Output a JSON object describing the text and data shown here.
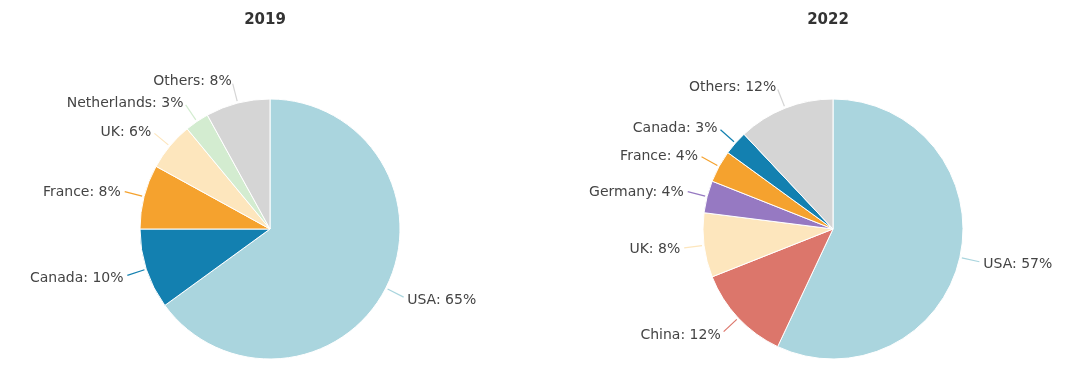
{
  "chart_data": [
    {
      "type": "pie",
      "title": "2019",
      "categories": [
        "USA",
        "Canada",
        "France",
        "UK",
        "Netherlands",
        "Others"
      ],
      "values": [
        65,
        10,
        8,
        6,
        3,
        8
      ],
      "value_labels": [
        "65%",
        "10%",
        "8%",
        "6%",
        "3%",
        "8%"
      ],
      "colors": [
        "#aad5de",
        "#1380b0",
        "#f5a22e",
        "#fde6bd",
        "#d3ecd0",
        "#d5d5d5"
      ]
    },
    {
      "type": "pie",
      "title": "2022",
      "categories": [
        "USA",
        "China",
        "UK",
        "Germany",
        "France",
        "Canada",
        "Others"
      ],
      "values": [
        57,
        12,
        8,
        4,
        4,
        3,
        12
      ],
      "value_labels": [
        "57%",
        "12%",
        "8%",
        "4%",
        "4%",
        "3%",
        "12%"
      ],
      "colors": [
        "#aad5de",
        "#dc766b",
        "#fde6bd",
        "#9679c2",
        "#f5a22e",
        "#1380b0",
        "#d5d5d5"
      ]
    }
  ]
}
